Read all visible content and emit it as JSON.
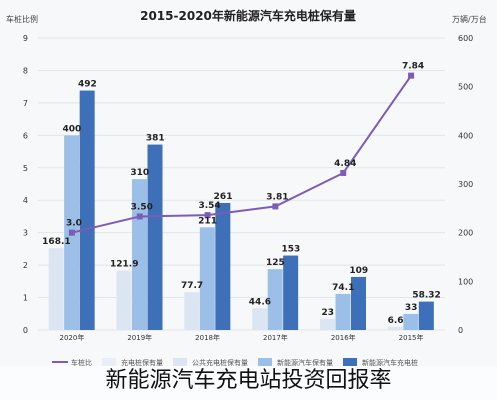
{
  "chart_data": {
    "type": "bar",
    "title": "2015-2020年新能源汽车充电桩保有量",
    "left_unit": "车桩比例",
    "right_unit": "万辆/万台",
    "categories": [
      "2020年",
      "2019年",
      "2018年",
      "2017年",
      "2016年",
      "2015年"
    ],
    "left_ticks": [
      "9",
      "8",
      "7",
      "6",
      "5",
      "4",
      "3",
      "2",
      "1",
      "0"
    ],
    "right_ticks": [
      "600",
      "500",
      "400",
      "300",
      "200",
      "100",
      "0"
    ],
    "ylim_left": [
      0,
      9
    ],
    "ylim_right": [
      0,
      600
    ],
    "series": [
      {
        "name": "公共充电桩保有量",
        "axis": "right",
        "values": [
          168.1,
          121.9,
          77.7,
          44.6,
          23,
          6.6
        ],
        "labels": [
          "168.1",
          "121.9",
          "77.7",
          "44.6",
          "23",
          "6.6"
        ]
      },
      {
        "name": "新能源汽车保有量",
        "axis": "right",
        "values": [
          400,
          310,
          211,
          125,
          74.1,
          33
        ],
        "labels": [
          "400",
          "310",
          "211",
          "125",
          "74.1",
          "33"
        ]
      },
      {
        "name": "新能源汽车充电桩",
        "axis": "right",
        "values": [
          492,
          381,
          261,
          153,
          109,
          58.32
        ],
        "labels": [
          "492",
          "381",
          "261",
          "153",
          "109",
          "58.32"
        ]
      },
      {
        "name": "车桩比",
        "axis": "left",
        "type": "line",
        "values": [
          3.0,
          3.5,
          3.54,
          3.81,
          4.84,
          7.84
        ],
        "labels": [
          "3.0",
          "3.50",
          "3.54",
          "3.81",
          "4.84",
          "7.84"
        ]
      }
    ],
    "legend": [
      "车桩比",
      "充电桩保有量",
      "公共充电桩保有量",
      "新能源汽车保有量",
      "新能源汽车充电桩"
    ],
    "colors": {
      "bar1": "#dce6f3",
      "bar2": "#9cbfe8",
      "bar3": "#3d70b8",
      "line": "#7c5cb4",
      "grid": "#e2e5ea",
      "axis_text": "#333333"
    }
  },
  "caption": "新能源汽车充电站投资回报率"
}
